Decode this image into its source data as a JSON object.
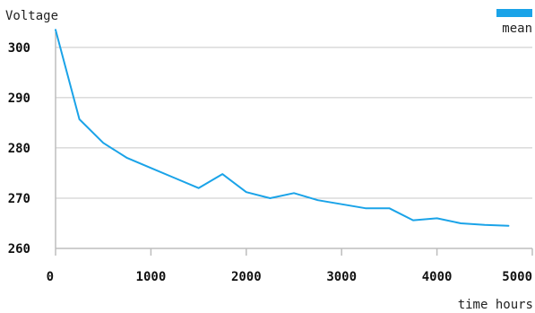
{
  "chart_data": {
    "type": "line",
    "title": "",
    "ylabel": "Voltage",
    "xlabel": "time hours",
    "xlim": [
      0,
      5000
    ],
    "ylim": [
      260,
      303
    ],
    "x_ticks": [
      0,
      1000,
      2000,
      3000,
      4000,
      5000
    ],
    "y_ticks": [
      260,
      270,
      280,
      290,
      300
    ],
    "x_tick_labels": [
      "0",
      "1000",
      "2000",
      "3000",
      "4000",
      "5000"
    ],
    "y_tick_labels": [
      "260",
      "270",
      "280",
      "290",
      "300"
    ],
    "grid": "horizontal",
    "legend_position": "top-right",
    "colors": {
      "series": "#1aa3e8",
      "grid": "#c8c8c8",
      "axis": "#bdbdbd"
    },
    "series": [
      {
        "name": "mean",
        "x": [
          0,
          250,
          500,
          750,
          1000,
          1250,
          1500,
          1750,
          2000,
          2250,
          2500,
          2750,
          3000,
          3250,
          3500,
          3750,
          4000,
          4250,
          4500,
          4750
        ],
        "y": [
          303.5,
          285.7,
          281.0,
          278.0,
          276.0,
          274.0,
          272.0,
          274.8,
          271.2,
          270.0,
          271.0,
          269.6,
          268.8,
          268.0,
          268.0,
          265.6,
          266.0,
          265.0,
          264.7,
          264.5
        ]
      }
    ]
  }
}
